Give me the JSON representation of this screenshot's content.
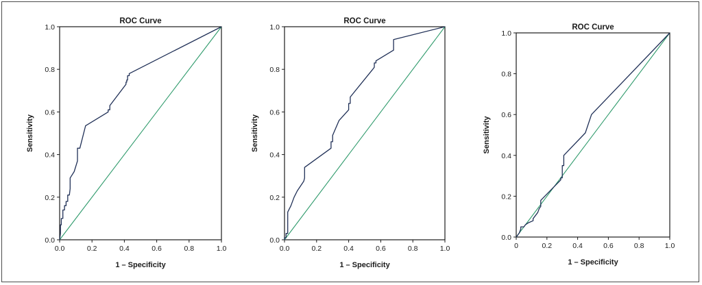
{
  "colors": {
    "roc_curve": "#1f2f56",
    "reference_line": "#2e9a6b",
    "axis": "#1a1a1a",
    "frame": "#4a4a4a"
  },
  "chart_data": [
    {
      "type": "line",
      "title": "ROC Curve",
      "xlabel": "1 – Specificity",
      "ylabel": "Sensitivity",
      "xlim": [
        0,
        1
      ],
      "ylim": [
        0,
        1
      ],
      "xticks": [
        "0.0",
        "0.2",
        "0.4",
        "0.6",
        "0.8",
        "1.0"
      ],
      "yticks": [
        "0.0",
        "0.2",
        "0.4",
        "0.6",
        "0.8",
        "1.0"
      ],
      "grid": false,
      "series": [
        {
          "x": [
            0,
            0.005,
            0.005,
            0.01,
            0.01,
            0.02,
            0.02,
            0.03,
            0.03,
            0.04,
            0.04,
            0.05,
            0.05,
            0.06,
            0.065,
            0.065,
            0.09,
            0.11,
            0.11,
            0.125,
            0.16,
            0.3,
            0.3,
            0.31,
            0.31,
            0.41,
            0.41,
            0.415,
            0.415,
            0.42,
            0.42,
            0.43,
            0.43,
            1.0
          ],
          "y": [
            0,
            0.03,
            0.07,
            0.07,
            0.1,
            0.1,
            0.14,
            0.14,
            0.16,
            0.16,
            0.18,
            0.18,
            0.21,
            0.21,
            0.24,
            0.29,
            0.32,
            0.37,
            0.43,
            0.43,
            0.535,
            0.6,
            0.61,
            0.61,
            0.63,
            0.73,
            0.74,
            0.74,
            0.75,
            0.75,
            0.77,
            0.77,
            0.78,
            1.0
          ]
        },
        {
          "x": [
            0,
            0.0,
            0.01,
            0.01,
            0.02,
            0.02,
            0.04,
            0.06,
            0.08,
            0.12,
            0.125,
            0.125,
            0.29,
            0.29,
            0.3,
            0.3,
            0.34,
            0.4,
            0.4,
            0.41,
            0.41,
            0.55,
            0.56,
            0.56,
            0.57,
            0.57,
            0.68,
            0.68,
            1.0
          ],
          "y": [
            0,
            0.01,
            0.01,
            0.03,
            0.03,
            0.13,
            0.16,
            0.2,
            0.23,
            0.275,
            0.29,
            0.34,
            0.43,
            0.46,
            0.46,
            0.49,
            0.56,
            0.61,
            0.64,
            0.64,
            0.67,
            0.8,
            0.81,
            0.83,
            0.83,
            0.84,
            0.89,
            0.94,
            1.0
          ]
        },
        {
          "x": [
            0,
            0.02,
            0.03,
            0.03,
            0.05,
            0.06,
            0.08,
            0.11,
            0.11,
            0.14,
            0.15,
            0.16,
            0.16,
            0.29,
            0.29,
            0.3,
            0.3,
            0.31,
            0.31,
            0.45,
            0.49,
            1.0
          ],
          "y": [
            0,
            0.02,
            0.04,
            0.05,
            0.05,
            0.06,
            0.07,
            0.08,
            0.09,
            0.12,
            0.14,
            0.15,
            0.18,
            0.28,
            0.29,
            0.29,
            0.35,
            0.35,
            0.4,
            0.51,
            0.6,
            1.0
          ]
        }
      ]
    },
    {
      "type": "line",
      "title": "ROC Curve",
      "xlabel": "1 – Specificity",
      "ylabel": "Sensitivity",
      "xlim": [
        0,
        1
      ],
      "ylim": [
        0,
        1
      ],
      "xticks": [
        "0.0",
        "0.2",
        "0.4",
        "0.6",
        "0.8",
        "1.0"
      ],
      "yticks": [
        "0.0",
        "0.2",
        "0.4",
        "0.6",
        "0.8",
        "1.0"
      ],
      "grid": false,
      "series": [
        {
          "x": [
            0,
            1
          ],
          "y": [
            0,
            1
          ]
        }
      ]
    },
    {
      "type": "line",
      "title": "ROC Curve",
      "xlabel": "1 – Specificity",
      "ylabel": "Sensitivity",
      "xlim": [
        0,
        1
      ],
      "ylim": [
        0,
        1
      ],
      "xticks": [
        "0",
        "0.2",
        "0.4",
        "0.6",
        "0.8",
        "1.0"
      ],
      "yticks": [
        "0.0",
        "0.2",
        "0.4",
        "0.6",
        "0.8",
        "1.0"
      ],
      "grid": false,
      "series": [
        {
          "x": [
            0,
            1
          ],
          "y": [
            0,
            1
          ]
        }
      ]
    }
  ]
}
